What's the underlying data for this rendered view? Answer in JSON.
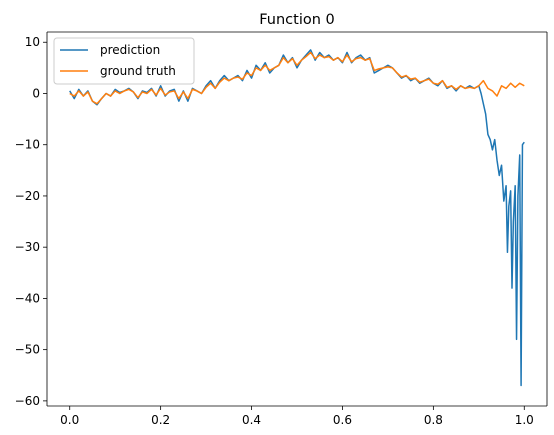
{
  "chart_data": {
    "type": "line",
    "title": "Function 0",
    "xlabel": "",
    "ylabel": "",
    "xlim": [
      -0.05,
      1.05
    ],
    "ylim": [
      -61,
      12
    ],
    "xticks": [
      0.0,
      0.2,
      0.4,
      0.6,
      0.8,
      1.0
    ],
    "xtick_labels": [
      "0.0",
      "0.2",
      "0.4",
      "0.6",
      "0.8",
      "1.0"
    ],
    "yticks": [
      10,
      0,
      -10,
      -20,
      -30,
      -40,
      -50,
      -60
    ],
    "ytick_labels": [
      "10",
      "0",
      "−10",
      "−20",
      "−30",
      "−40",
      "−50",
      "−60"
    ],
    "grid": false,
    "legend": "top-left",
    "series": [
      {
        "name": "prediction",
        "color": "#1f77b4",
        "x": [
          0.0,
          0.01,
          0.02,
          0.03,
          0.04,
          0.05,
          0.06,
          0.07,
          0.08,
          0.09,
          0.1,
          0.11,
          0.12,
          0.13,
          0.14,
          0.15,
          0.16,
          0.17,
          0.18,
          0.19,
          0.2,
          0.21,
          0.22,
          0.23,
          0.24,
          0.25,
          0.26,
          0.27,
          0.28,
          0.29,
          0.3,
          0.31,
          0.32,
          0.33,
          0.34,
          0.35,
          0.36,
          0.37,
          0.38,
          0.39,
          0.4,
          0.41,
          0.42,
          0.43,
          0.44,
          0.45,
          0.46,
          0.47,
          0.48,
          0.49,
          0.5,
          0.51,
          0.52,
          0.53,
          0.54,
          0.55,
          0.56,
          0.57,
          0.58,
          0.59,
          0.6,
          0.61,
          0.62,
          0.63,
          0.64,
          0.65,
          0.66,
          0.67,
          0.68,
          0.69,
          0.7,
          0.71,
          0.72,
          0.73,
          0.74,
          0.75,
          0.76,
          0.77,
          0.78,
          0.79,
          0.8,
          0.81,
          0.82,
          0.83,
          0.84,
          0.85,
          0.86,
          0.87,
          0.88,
          0.89,
          0.9,
          0.905,
          0.91,
          0.915,
          0.92,
          0.925,
          0.93,
          0.935,
          0.94,
          0.945,
          0.95,
          0.955,
          0.96,
          0.963,
          0.966,
          0.97,
          0.973,
          0.976,
          0.98,
          0.983,
          0.986,
          0.99,
          0.993,
          0.996,
          1.0
        ],
        "values": [
          0.5,
          -1.0,
          0.8,
          -0.5,
          0.5,
          -1.5,
          -2.2,
          -1.0,
          0.0,
          -0.5,
          0.8,
          0.2,
          0.5,
          1.0,
          0.3,
          -1.0,
          0.5,
          0.2,
          1.0,
          -0.5,
          1.5,
          -0.5,
          0.5,
          0.8,
          -1.5,
          0.5,
          -1.5,
          1.0,
          0.5,
          0.0,
          1.5,
          2.5,
          1.0,
          2.5,
          3.5,
          2.5,
          3.0,
          3.5,
          2.5,
          4.5,
          3.0,
          5.5,
          4.5,
          6.0,
          4.0,
          5.0,
          5.5,
          7.5,
          6.0,
          7.0,
          5.0,
          6.5,
          7.5,
          8.5,
          6.5,
          8.0,
          7.0,
          7.5,
          6.5,
          7.0,
          6.0,
          8.0,
          6.0,
          7.0,
          7.5,
          6.5,
          7.0,
          4.0,
          4.5,
          5.0,
          5.5,
          5.0,
          4.0,
          3.0,
          3.5,
          2.5,
          3.0,
          2.0,
          2.5,
          3.0,
          2.0,
          1.5,
          2.5,
          1.0,
          1.5,
          0.5,
          1.5,
          1.0,
          1.5,
          1.0,
          1.5,
          0.0,
          -2.0,
          -4.0,
          -8.0,
          -9.0,
          -11.0,
          -9.0,
          -13.0,
          -16.0,
          -14.0,
          -21.0,
          -18.0,
          -31.0,
          -22.0,
          -19.0,
          -38.0,
          -25.0,
          -18.0,
          -48.0,
          -20.0,
          -12.0,
          -57.0,
          -10.0,
          -9.5
        ]
      },
      {
        "name": "ground truth",
        "color": "#ff7f0e",
        "x": [
          0.0,
          0.01,
          0.02,
          0.03,
          0.04,
          0.05,
          0.06,
          0.07,
          0.08,
          0.09,
          0.1,
          0.11,
          0.12,
          0.13,
          0.14,
          0.15,
          0.16,
          0.17,
          0.18,
          0.19,
          0.2,
          0.21,
          0.22,
          0.23,
          0.24,
          0.25,
          0.26,
          0.27,
          0.28,
          0.29,
          0.3,
          0.31,
          0.32,
          0.33,
          0.34,
          0.35,
          0.36,
          0.37,
          0.38,
          0.39,
          0.4,
          0.41,
          0.42,
          0.43,
          0.44,
          0.45,
          0.46,
          0.47,
          0.48,
          0.49,
          0.5,
          0.51,
          0.52,
          0.53,
          0.54,
          0.55,
          0.56,
          0.57,
          0.58,
          0.59,
          0.6,
          0.61,
          0.62,
          0.63,
          0.64,
          0.65,
          0.66,
          0.67,
          0.68,
          0.69,
          0.7,
          0.71,
          0.72,
          0.73,
          0.74,
          0.75,
          0.76,
          0.77,
          0.78,
          0.79,
          0.8,
          0.81,
          0.82,
          0.83,
          0.84,
          0.85,
          0.86,
          0.87,
          0.88,
          0.89,
          0.9,
          0.91,
          0.92,
          0.93,
          0.94,
          0.95,
          0.96,
          0.97,
          0.98,
          0.99,
          1.0
        ],
        "values": [
          0.0,
          -0.5,
          0.5,
          -0.5,
          0.3,
          -1.5,
          -2.0,
          -1.0,
          0.0,
          -0.5,
          0.5,
          0.0,
          0.5,
          0.8,
          0.3,
          -0.8,
          0.3,
          0.0,
          0.8,
          -0.3,
          1.0,
          -0.3,
          0.3,
          0.5,
          -1.0,
          0.3,
          -1.0,
          0.8,
          0.5,
          0.0,
          1.2,
          2.0,
          1.0,
          2.2,
          3.0,
          2.5,
          3.0,
          3.2,
          2.8,
          4.0,
          3.5,
          5.0,
          4.5,
          5.5,
          4.5,
          5.0,
          5.5,
          7.0,
          6.0,
          6.8,
          5.5,
          6.5,
          7.2,
          8.0,
          6.8,
          7.5,
          7.0,
          7.2,
          6.5,
          7.0,
          6.2,
          7.5,
          6.2,
          6.8,
          7.0,
          6.5,
          6.8,
          4.5,
          4.8,
          5.0,
          5.2,
          5.0,
          4.0,
          3.2,
          3.5,
          2.8,
          3.0,
          2.2,
          2.5,
          2.8,
          2.0,
          1.8,
          2.5,
          1.2,
          1.5,
          0.8,
          1.5,
          1.0,
          1.2,
          1.0,
          1.5,
          2.5,
          1.0,
          0.5,
          -0.5,
          1.5,
          1.0,
          2.0,
          1.2,
          2.0,
          1.5
        ]
      }
    ]
  }
}
